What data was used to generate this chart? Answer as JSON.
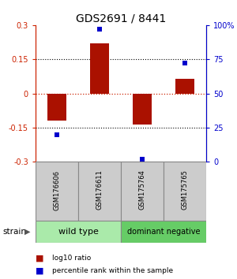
{
  "title": "GDS2691 / 8441",
  "samples": [
    "GSM176606",
    "GSM176611",
    "GSM175764",
    "GSM175765"
  ],
  "log10_ratio": [
    -0.12,
    0.22,
    -0.135,
    0.065
  ],
  "percentile_rank": [
    20,
    97,
    2,
    72
  ],
  "groups": [
    {
      "name": "wild type",
      "color": "#aaeaaa",
      "samples": [
        0,
        1
      ]
    },
    {
      "name": "dominant negative",
      "color": "#66cc66",
      "samples": [
        2,
        3
      ]
    }
  ],
  "ylim": [
    -0.3,
    0.3
  ],
  "yticks_left": [
    -0.3,
    -0.15,
    0,
    0.15,
    0.3
  ],
  "yticks_right": [
    0,
    25,
    50,
    75,
    100
  ],
  "bar_color": "#aa1100",
  "dot_color": "#0000cc",
  "bar_width": 0.45,
  "background_color": "#ffffff",
  "label_log10": "log10 ratio",
  "label_percentile": "percentile rank within the sample",
  "strain_label": "strain",
  "ylabel_left_color": "#cc2200",
  "ylabel_right_color": "#0000cc",
  "zero_line_color": "#cc2200",
  "grid_color": "#000000",
  "sample_box_color": "#cccccc",
  "group_label_fontsize": 8,
  "title_fontsize": 10,
  "tick_fontsize": 7,
  "sample_fontsize": 6
}
